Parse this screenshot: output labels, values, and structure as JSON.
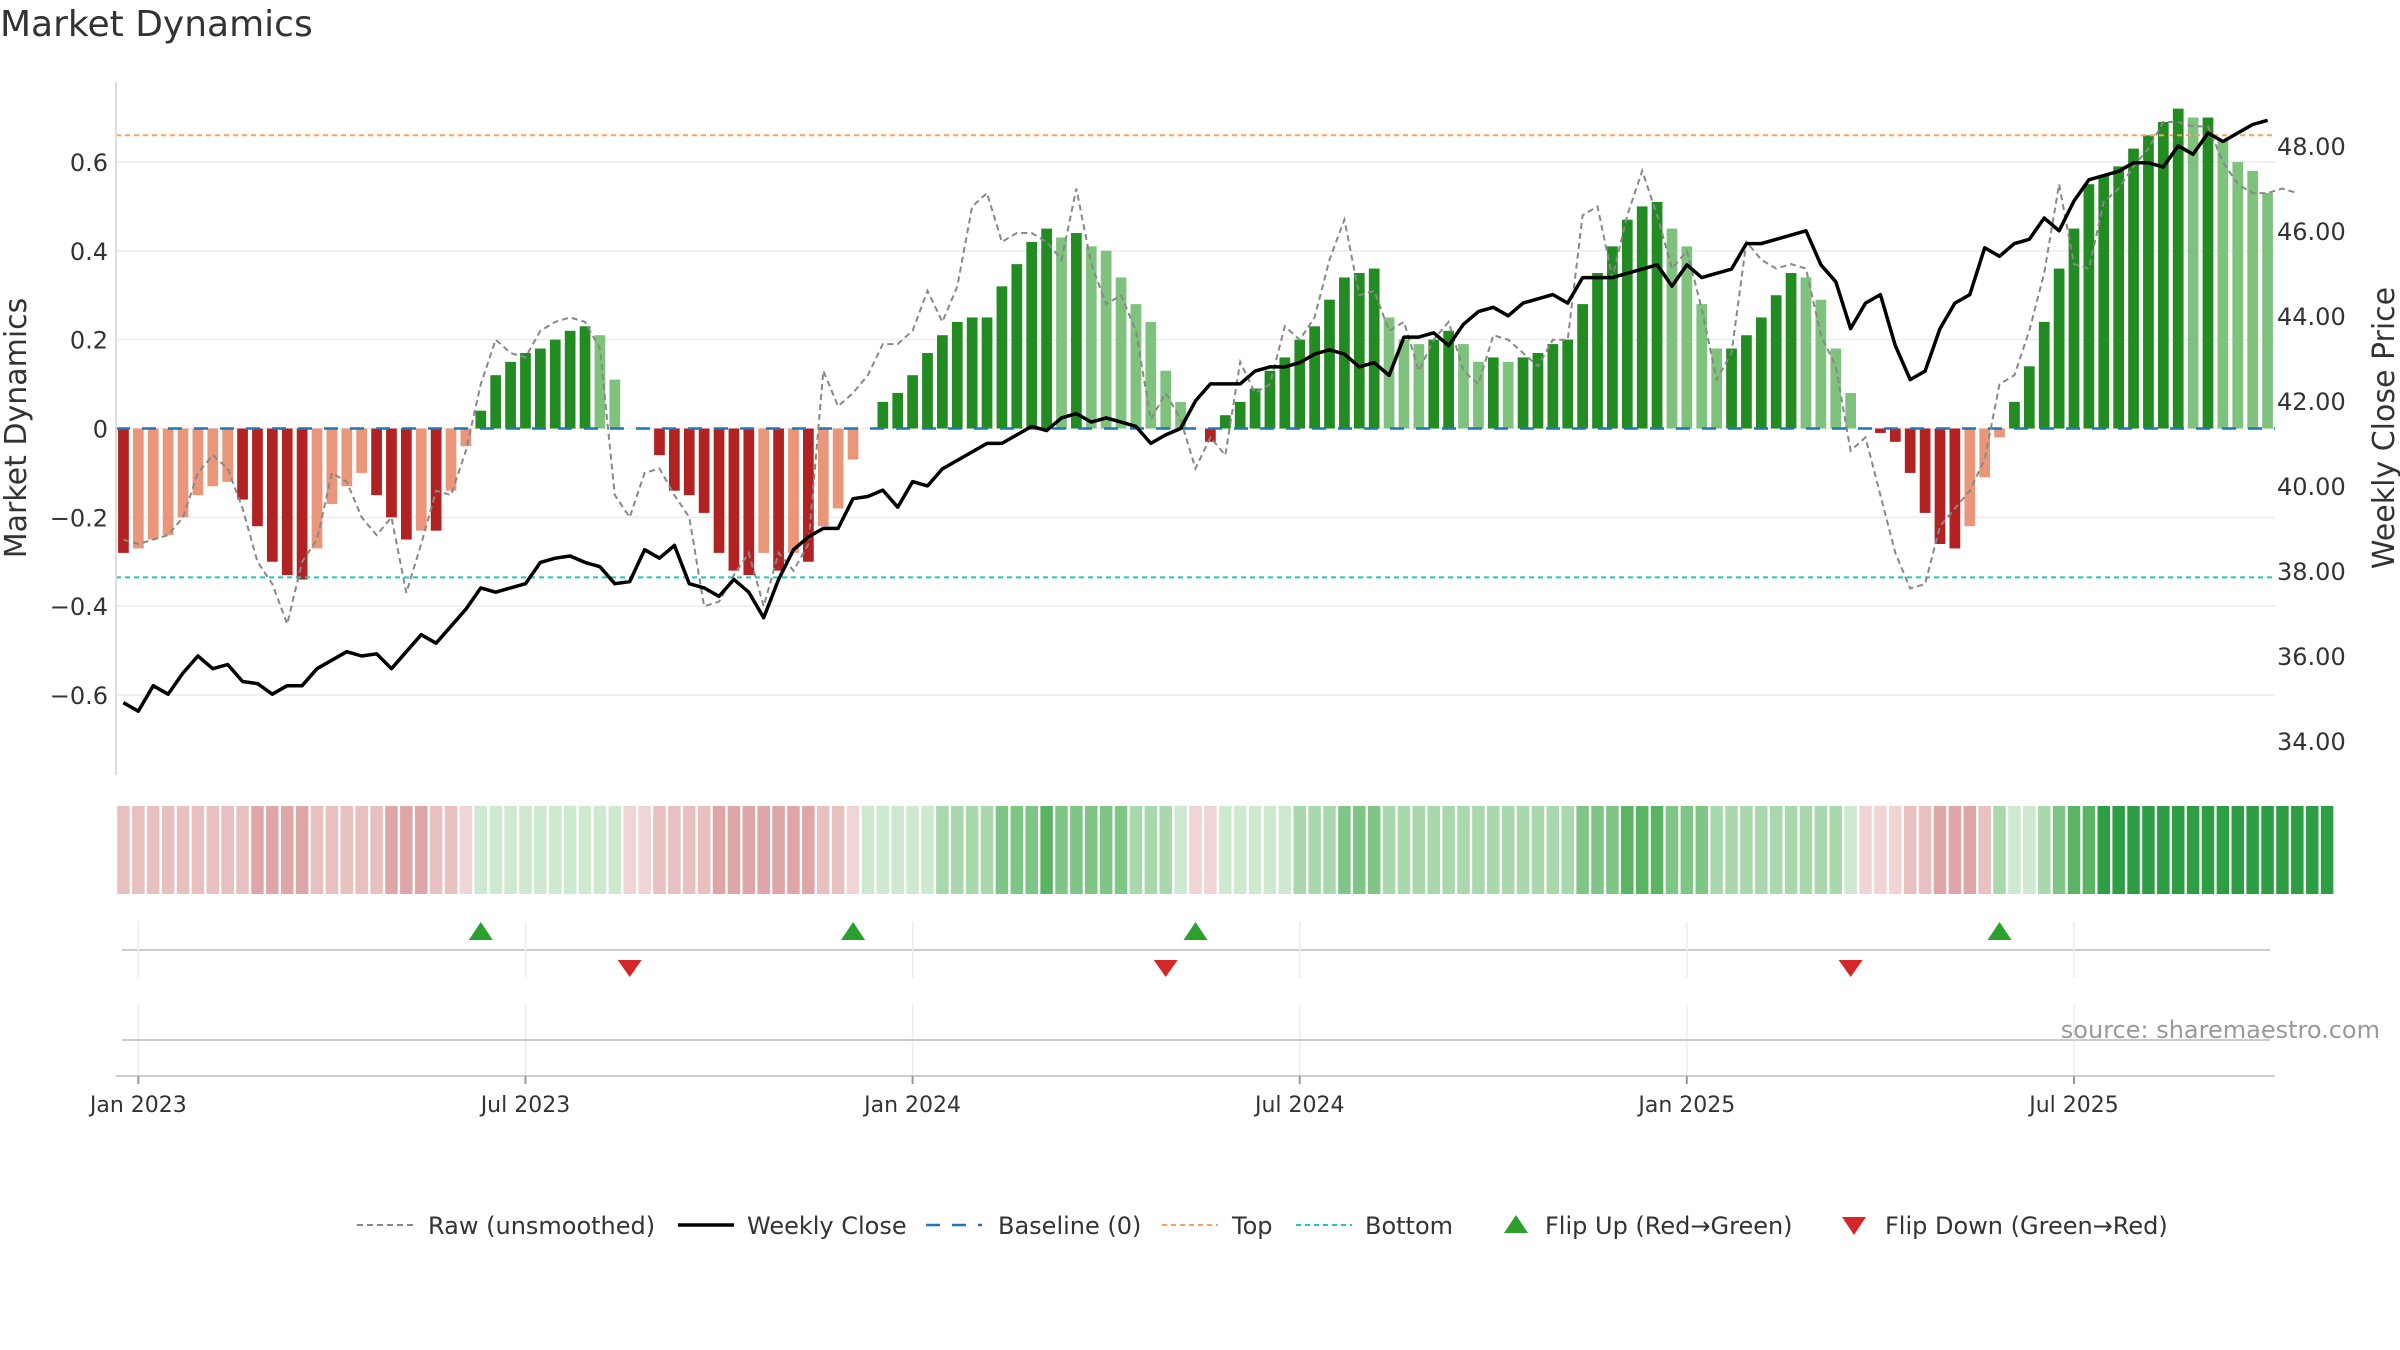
{
  "title": "Market Dynamics",
  "source": "source: sharemaestro.com",
  "colors": {
    "red_strong": "#b22222",
    "red_light": "#e9967a",
    "green_strong": "#228b22",
    "green_light": "#7ec27e",
    "raw": "#888888",
    "close": "#000000",
    "baseline": "#1f77b4",
    "top": "#f4a460",
    "bottom": "#20c5c5",
    "flip_up": "#2ca02c",
    "flip_down": "#d62728"
  },
  "chart_data": {
    "type": "bar",
    "title": "Market Dynamics",
    "ylabel_left": "Market Dynamics",
    "ylabel_right": "Weekly Close Price",
    "ylim_left": [
      -0.78,
      0.78
    ],
    "ylim_right": [
      33.2,
      49.5
    ],
    "yticks_left": [
      -0.6,
      -0.4,
      -0.2,
      0,
      0.2,
      0.4,
      0.6
    ],
    "yticks_left_labels": [
      "−0.6",
      "−0.4",
      "−0.2",
      "0",
      "0.2",
      "0.4",
      "0.6"
    ],
    "yticks_right": [
      34,
      36,
      38,
      40,
      42,
      44,
      46,
      48
    ],
    "yticks_right_labels": [
      "34.00",
      "36.00",
      "38.00",
      "40.00",
      "42.00",
      "44.00",
      "46.00",
      "48.00"
    ],
    "x_ticks": [
      "Jan 2023",
      "Jul 2023",
      "Jan 2024",
      "Jul 2024",
      "Jan 2025",
      "Jul 2025"
    ],
    "x_tick_positions": [
      1.5,
      27.5,
      53.5,
      79.5,
      105.5,
      131.5
    ],
    "top_level": 0.66,
    "bottom_level": -0.335,
    "baseline": 0,
    "bars": [
      -0.28,
      -0.27,
      -0.25,
      -0.24,
      -0.2,
      -0.15,
      -0.13,
      -0.12,
      -0.16,
      -0.22,
      -0.3,
      -0.33,
      -0.34,
      -0.27,
      -0.17,
      -0.13,
      -0.1,
      -0.15,
      -0.2,
      -0.25,
      -0.23,
      -0.23,
      -0.14,
      -0.04,
      0.04,
      0.12,
      0.15,
      0.17,
      0.18,
      0.2,
      0.22,
      0.23,
      0.21,
      0.11,
      0.0,
      0.0,
      -0.06,
      -0.14,
      -0.15,
      -0.19,
      -0.28,
      -0.32,
      -0.33,
      -0.28,
      -0.32,
      -0.28,
      -0.3,
      -0.22,
      -0.18,
      -0.07,
      0.0,
      0.06,
      0.08,
      0.12,
      0.17,
      0.21,
      0.24,
      0.25,
      0.25,
      0.32,
      0.37,
      0.42,
      0.45,
      0.43,
      0.44,
      0.41,
      0.4,
      0.34,
      0.28,
      0.24,
      0.13,
      0.06,
      0.0,
      -0.03,
      0.03,
      0.06,
      0.09,
      0.13,
      0.16,
      0.2,
      0.23,
      0.29,
      0.34,
      0.35,
      0.36,
      0.25,
      0.2,
      0.19,
      0.2,
      0.22,
      0.19,
      0.15,
      0.16,
      0.15,
      0.16,
      0.17,
      0.19,
      0.2,
      0.28,
      0.35,
      0.41,
      0.47,
      0.5,
      0.51,
      0.45,
      0.41,
      0.28,
      0.18,
      0.18,
      0.21,
      0.25,
      0.3,
      0.35,
      0.34,
      0.29,
      0.18,
      0.08,
      0.0,
      -0.01,
      -0.03,
      -0.1,
      -0.19,
      -0.26,
      -0.27,
      -0.22,
      -0.11,
      -0.02,
      0.06,
      0.14,
      0.24,
      0.36,
      0.45,
      0.55,
      0.57,
      0.59,
      0.63,
      0.66,
      0.69,
      0.72,
      0.7,
      0.7,
      0.65,
      0.6,
      0.58,
      0.53
    ],
    "weekly_close": [
      34.9,
      34.7,
      35.3,
      35.1,
      35.6,
      36.0,
      35.7,
      35.8,
      35.4,
      35.35,
      35.1,
      35.3,
      35.3,
      35.7,
      35.9,
      36.1,
      36.0,
      36.05,
      35.7,
      36.1,
      36.5,
      36.3,
      36.7,
      37.1,
      37.6,
      37.5,
      37.6,
      37.7,
      38.2,
      38.3,
      38.35,
      38.2,
      38.1,
      37.7,
      37.75,
      38.5,
      38.3,
      38.6,
      37.7,
      37.6,
      37.4,
      37.8,
      37.5,
      36.9,
      37.8,
      38.5,
      38.8,
      39.0,
      39.0,
      39.7,
      39.75,
      39.9,
      39.5,
      40.1,
      40.0,
      40.4,
      40.6,
      40.8,
      41.0,
      41.0,
      41.2,
      41.4,
      41.3,
      41.6,
      41.7,
      41.5,
      41.6,
      41.5,
      41.4,
      41.0,
      41.2,
      41.35,
      42.0,
      42.4,
      42.4,
      42.4,
      42.7,
      42.8,
      42.8,
      42.9,
      43.1,
      43.2,
      43.1,
      42.8,
      42.9,
      42.6,
      43.5,
      43.5,
      43.6,
      43.3,
      43.8,
      44.1,
      44.2,
      44.0,
      44.3,
      44.4,
      44.5,
      44.3,
      44.9,
      44.9,
      44.9,
      45.0,
      45.1,
      45.2,
      44.7,
      45.2,
      44.9,
      45.0,
      45.1,
      45.7,
      45.7,
      45.8,
      45.9,
      46.0,
      45.2,
      44.8,
      43.7,
      44.3,
      44.5,
      43.3,
      42.5,
      42.7,
      43.7,
      44.3,
      44.5,
      45.6,
      45.4,
      45.7,
      45.8,
      46.3,
      46.0,
      46.7,
      47.2,
      47.3,
      47.4,
      47.6,
      47.6,
      47.5,
      48.0,
      47.8,
      48.3,
      48.1,
      48.3,
      48.5,
      48.6
    ],
    "raw": [
      -0.25,
      -0.26,
      -0.25,
      -0.24,
      -0.2,
      -0.1,
      -0.06,
      -0.09,
      -0.18,
      -0.3,
      -0.35,
      -0.44,
      -0.3,
      -0.25,
      -0.1,
      -0.12,
      -0.2,
      -0.24,
      -0.2,
      -0.37,
      -0.26,
      -0.14,
      -0.15,
      -0.05,
      0.1,
      0.2,
      0.17,
      0.16,
      0.22,
      0.24,
      0.25,
      0.24,
      0.18,
      -0.15,
      -0.2,
      -0.1,
      -0.09,
      -0.15,
      -0.2,
      -0.4,
      -0.39,
      -0.33,
      -0.28,
      -0.4,
      -0.28,
      -0.32,
      -0.26,
      0.13,
      0.05,
      0.08,
      0.12,
      0.19,
      0.19,
      0.22,
      0.31,
      0.24,
      0.32,
      0.5,
      0.53,
      0.42,
      0.44,
      0.44,
      0.42,
      0.38,
      0.54,
      0.37,
      0.28,
      0.3,
      0.22,
      0.02,
      0.08,
      0.02,
      -0.09,
      -0.02,
      -0.06,
      0.15,
      0.08,
      0.1,
      0.23,
      0.2,
      0.25,
      0.38,
      0.47,
      0.3,
      0.31,
      0.22,
      0.24,
      0.13,
      0.2,
      0.24,
      0.13,
      0.1,
      0.21,
      0.2,
      0.17,
      0.14,
      0.2,
      0.2,
      0.48,
      0.5,
      0.34,
      0.48,
      0.58,
      0.48,
      0.36,
      0.4,
      0.27,
      0.11,
      0.17,
      0.42,
      0.38,
      0.36,
      0.37,
      0.36,
      0.21,
      0.14,
      -0.05,
      -0.02,
      -0.15,
      -0.28,
      -0.36,
      -0.35,
      -0.22,
      -0.18,
      -0.14,
      -0.07,
      0.1,
      0.12,
      0.22,
      0.35,
      0.55,
      0.37,
      0.36,
      0.51,
      0.54,
      0.59,
      0.63,
      0.69,
      0.69,
      0.68,
      0.68,
      0.6,
      0.55,
      0.53,
      0.53,
      0.54,
      0.53
    ],
    "strip_levels": [
      2,
      2,
      2,
      2,
      2,
      2,
      2,
      2,
      2,
      3,
      3,
      3,
      3,
      2,
      2,
      2,
      2,
      2,
      3,
      3,
      3,
      2,
      2,
      1,
      1,
      1,
      1,
      1,
      1,
      1,
      1,
      1,
      1,
      1,
      1,
      1,
      2,
      2,
      2,
      2,
      3,
      3,
      3,
      3,
      3,
      3,
      3,
      2,
      2,
      1,
      1,
      1,
      1,
      1,
      1,
      2,
      2,
      2,
      2,
      3,
      3,
      3,
      4,
      3,
      3,
      3,
      3,
      3,
      2,
      2,
      2,
      1,
      1,
      1,
      1,
      1,
      1,
      1,
      1,
      2,
      2,
      2,
      3,
      3,
      3,
      2,
      2,
      2,
      2,
      2,
      2,
      2,
      2,
      2,
      2,
      2,
      2,
      2,
      3,
      3,
      3,
      4,
      4,
      4,
      3,
      3,
      3,
      2,
      2,
      2,
      2,
      2,
      2,
      2,
      2,
      2,
      1,
      1,
      1,
      1,
      2,
      2,
      3,
      3,
      3,
      2,
      2,
      1,
      1,
      2,
      3,
      4,
      4,
      5,
      5,
      5,
      5,
      5,
      5,
      5,
      5,
      5,
      5,
      5,
      5,
      5,
      5,
      5,
      5
    ],
    "strip_signs": [
      -1,
      -1,
      -1,
      -1,
      -1,
      -1,
      -1,
      -1,
      -1,
      -1,
      -1,
      -1,
      -1,
      -1,
      -1,
      -1,
      -1,
      -1,
      -1,
      -1,
      -1,
      -1,
      -1,
      -1,
      1,
      1,
      1,
      1,
      1,
      1,
      1,
      1,
      1,
      1,
      -1,
      -1,
      -1,
      -1,
      -1,
      -1,
      -1,
      -1,
      -1,
      -1,
      -1,
      -1,
      -1,
      -1,
      -1,
      -1,
      1,
      1,
      1,
      1,
      1,
      1,
      1,
      1,
      1,
      1,
      1,
      1,
      1,
      1,
      1,
      1,
      1,
      1,
      1,
      1,
      1,
      1,
      -1,
      -1,
      1,
      1,
      1,
      1,
      1,
      1,
      1,
      1,
      1,
      1,
      1,
      1,
      1,
      1,
      1,
      1,
      1,
      1,
      1,
      1,
      1,
      1,
      1,
      1,
      1,
      1,
      1,
      1,
      1,
      1,
      1,
      1,
      1,
      1,
      1,
      1,
      1,
      1,
      1,
      1,
      1,
      1,
      1,
      -1,
      -1,
      -1,
      -1,
      -1,
      -1,
      -1,
      -1,
      -1,
      1,
      1,
      1,
      1,
      1,
      1,
      1,
      1,
      1,
      1,
      1,
      1,
      1,
      1,
      1,
      1,
      1,
      1,
      1,
      1,
      1,
      1,
      1
    ],
    "flip_up_weeks": [
      24,
      49,
      72,
      126
    ],
    "flip_down_weeks": [
      34,
      70,
      116
    ],
    "legend": [
      "Raw (unsmoothed)",
      "Weekly Close",
      "Baseline (0)",
      "Top",
      "Bottom",
      "Flip Up (Red→Green)",
      "Flip Down (Green→Red)"
    ]
  }
}
